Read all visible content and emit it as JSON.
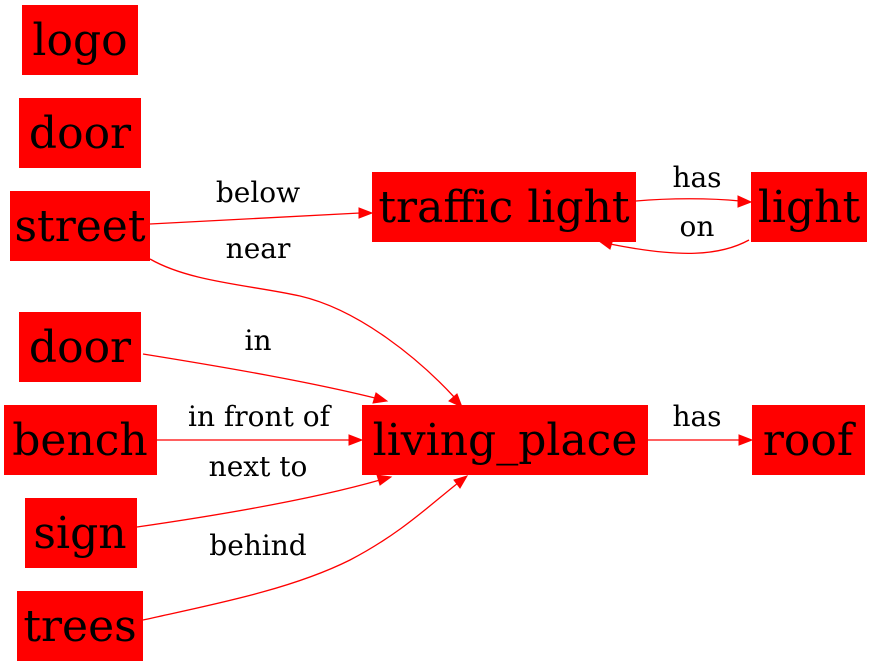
{
  "colors": {
    "node_fill": "#ff0000",
    "edge": "#ff0000",
    "text": "#000000",
    "background": "#ffffff"
  },
  "nodes": {
    "logo": "logo",
    "door1": "door",
    "street": "street",
    "traffic_light": "traffic light",
    "light": "light",
    "door2": "door",
    "bench": "bench",
    "sign": "sign",
    "trees": "trees",
    "living_place": "living_place",
    "roof": "roof"
  },
  "edges": [
    {
      "id": "street-below-traffic_light",
      "source": "street",
      "target": "traffic_light",
      "label": "below"
    },
    {
      "id": "traffic_light-has-light",
      "source": "traffic_light",
      "target": "light",
      "label": "has"
    },
    {
      "id": "light-on-traffic_light",
      "source": "light",
      "target": "traffic_light",
      "label": "on"
    },
    {
      "id": "street-near-living_place",
      "source": "street",
      "target": "living_place",
      "label": "near"
    },
    {
      "id": "door-in-living_place",
      "source": "door2",
      "target": "living_place",
      "label": "in"
    },
    {
      "id": "bench-in_front_of-living_place",
      "source": "bench",
      "target": "living_place",
      "label": "in front of"
    },
    {
      "id": "sign-next_to-living_place",
      "source": "sign",
      "target": "living_place",
      "label": "next to"
    },
    {
      "id": "trees-behind-living_place",
      "source": "trees",
      "target": "living_place",
      "label": "behind"
    },
    {
      "id": "living_place-has-roof",
      "source": "living_place",
      "target": "roof",
      "label": "has"
    }
  ]
}
